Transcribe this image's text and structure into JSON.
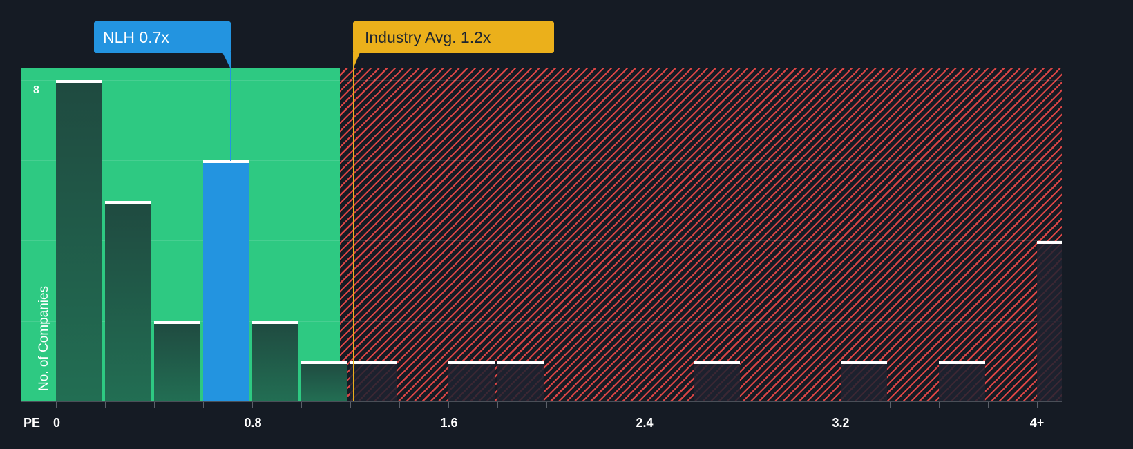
{
  "chart_data": {
    "type": "bar",
    "title": "",
    "xlabel": "PE",
    "ylabel": "No. of Companies",
    "bin_width": 0.2,
    "categories": [
      "0-0.2",
      "0.2-0.4",
      "0.4-0.6",
      "0.6-0.8",
      "0.8-1.0",
      "1.0-1.2",
      "1.2-1.4",
      "1.4-1.6",
      "1.6-1.8",
      "1.8-2.0",
      "2.0-2.2",
      "2.2-2.4",
      "2.4-2.6",
      "2.6-2.8",
      "2.8-3.0",
      "3.0-3.2",
      "3.2-3.4",
      "3.4-3.6",
      "3.6-3.8",
      "3.8-4.0",
      "4+"
    ],
    "values": [
      8,
      5,
      2,
      6,
      2,
      1,
      1,
      0,
      1,
      1,
      0,
      0,
      0,
      1,
      0,
      0,
      1,
      0,
      1,
      0,
      4
    ],
    "highlight_bin_index": 3,
    "x_ticks": [
      "0",
      "0.8",
      "1.6",
      "2.4",
      "3.2",
      "4+"
    ],
    "y_ticks_labeled": [
      "8"
    ],
    "ylim": [
      0,
      8.3
    ],
    "grid": true,
    "annotations": [
      {
        "label": "NLH 0.7x",
        "value": 0.7,
        "color": "#2394e0"
      },
      {
        "label": "Industry Avg. 1.2x",
        "value": 1.2,
        "color": "#ebb01b"
      }
    ],
    "zones": {
      "undervalued_until": 1.15,
      "undervalued_color": "#2ec982",
      "overvalued_color": "#d94545"
    }
  },
  "labels": {
    "company_callout": "NLH 0.7x",
    "industry_callout": "Industry Avg. 1.2x",
    "y_axis_title": "No. of Companies",
    "y_top_tick": "8",
    "x_axis_prefix": "PE",
    "x_ticks": [
      "0",
      "0.8",
      "1.6",
      "2.4",
      "3.2",
      "4+"
    ]
  }
}
